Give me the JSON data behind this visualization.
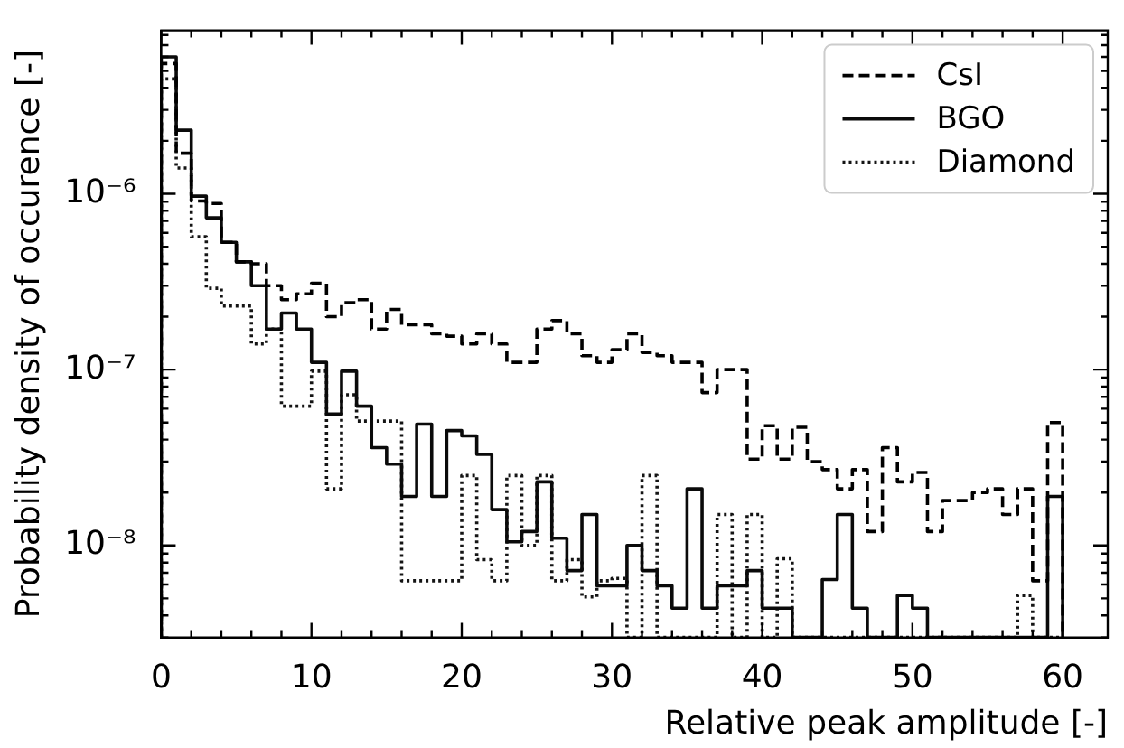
{
  "chart_data": {
    "type": "histogram",
    "xlabel": "Relative peak amplitude [-]",
    "ylabel": "Probability density of occurence [-]",
    "bins": [
      0,
      1,
      2,
      3,
      4,
      5,
      6,
      7,
      8,
      9,
      10,
      11,
      12,
      13,
      14,
      15,
      16,
      17,
      18,
      19,
      20,
      21,
      22,
      23,
      24,
      25,
      26,
      27,
      28,
      29,
      30,
      31,
      32,
      33,
      34,
      35,
      36,
      37,
      38,
      39,
      40,
      41,
      42,
      43,
      44,
      45,
      46,
      47,
      48,
      49,
      50,
      51,
      52,
      53,
      54,
      55,
      56,
      57,
      58,
      59,
      60
    ],
    "series": [
      {
        "name": "CsI",
        "color": "#000000",
        "line_style": "dashed",
        "values": [
          5.5e-06,
          1.7e-06,
          9.1e-07,
          8.8e-07,
          5.3e-07,
          4.1e-07,
          4e-07,
          3e-07,
          2.5e-07,
          2.7e-07,
          3.1e-07,
          2e-07,
          2.4e-07,
          2.5e-07,
          1.7e-07,
          2.2e-07,
          1.8e-07,
          1.8e-07,
          1.6e-07,
          1.55e-07,
          1.4e-07,
          1.6e-07,
          1.4e-07,
          1.1e-07,
          1.1e-07,
          1.7e-07,
          1.9e-07,
          1.6e-07,
          1.2e-07,
          1.1e-07,
          1.3e-07,
          1.6e-07,
          1.25e-07,
          1.2e-07,
          1.1e-07,
          1.1e-07,
          7.4e-08,
          1e-07,
          1e-07,
          3.1e-08,
          4.8e-08,
          3.1e-08,
          4.7e-08,
          3e-08,
          2.7e-08,
          2.1e-08,
          2.7e-08,
          1.2e-08,
          3.6e-08,
          2.3e-08,
          2.6e-08,
          1.2e-08,
          1.8e-08,
          1.8e-08,
          2e-08,
          2.1e-08,
          1.5e-08,
          2.1e-08,
          6.3e-09,
          5e-08
        ]
      },
      {
        "name": "BGO",
        "color": "#0a0a0a",
        "line_style": "solid",
        "values": [
          6e-06,
          2.3e-06,
          9.7e-07,
          7.3e-07,
          5.3e-07,
          4.1e-07,
          3e-07,
          1.7e-07,
          2.1e-07,
          1.7e-07,
          1.1e-07,
          5.6e-08,
          9.8e-08,
          6.2e-08,
          3.6e-08,
          2.9e-08,
          1.9e-08,
          4.9e-08,
          1.9e-08,
          4.5e-08,
          4.2e-08,
          3.3e-08,
          1.6e-08,
          1.05e-08,
          1.2e-08,
          2.3e-08,
          1.1e-08,
          7.2e-09,
          1.5e-08,
          5.9e-09,
          5.9e-09,
          1e-08,
          7.2e-09,
          5.9e-09,
          4.4e-09,
          2.1e-08,
          4.4e-09,
          5.9e-09,
          5.9e-09,
          7.2e-09,
          4.4e-09,
          4.4e-09,
          null,
          null,
          6.4e-09,
          1.5e-08,
          4.4e-09,
          null,
          null,
          5.2e-09,
          4.4e-09,
          null,
          null,
          null,
          null,
          null,
          null,
          null,
          null,
          1.9e-08
        ]
      },
      {
        "name": "Diamond",
        "color": "#141414",
        "line_style": "dotted",
        "values": [
          4.5e-06,
          1.4e-06,
          5.7e-07,
          2.9e-07,
          2.3e-07,
          2.3e-07,
          1.4e-07,
          1.7e-07,
          6.2e-08,
          6.2e-08,
          9.8e-08,
          2.1e-08,
          7.2e-08,
          5.1e-08,
          5.1e-08,
          5.1e-08,
          6.3e-09,
          6.3e-09,
          6.3e-09,
          6.3e-09,
          2.5e-08,
          8.3e-09,
          6.3e-09,
          2.5e-08,
          1e-08,
          2.5e-08,
          6.3e-09,
          8.3e-09,
          5.1e-09,
          6.3e-09,
          6.5e-09,
          null,
          2.5e-08,
          null,
          null,
          null,
          null,
          1.5e-08,
          null,
          1.5e-08,
          null,
          8.4e-09,
          null,
          null,
          null,
          null,
          null,
          null,
          null,
          null,
          null,
          null,
          null,
          null,
          null,
          null,
          null,
          5.2e-09,
          null,
          null
        ]
      }
    ],
    "xlim": [
      0,
      63
    ],
    "xticks": [
      0,
      10,
      20,
      30,
      40,
      50,
      60
    ],
    "ylim": [
      3e-09,
      8.5e-06
    ],
    "log": true,
    "yticks": [
      {
        "value": 3e-09,
        "label": null
      },
      {
        "value": 4e-09,
        "label": null
      },
      {
        "value": 5e-09,
        "label": null
      },
      {
        "value": 6e-09,
        "label": null
      },
      {
        "value": 7e-09,
        "label": null
      },
      {
        "value": 8e-09,
        "label": null
      },
      {
        "value": 9e-09,
        "label": null
      },
      {
        "value": 1e-08,
        "label": "10⁻⁸"
      },
      {
        "value": 2e-08,
        "label": null
      },
      {
        "value": 3e-08,
        "label": null
      },
      {
        "value": 4e-08,
        "label": null
      },
      {
        "value": 5e-08,
        "label": null
      },
      {
        "value": 6e-08,
        "label": null
      },
      {
        "value": 7e-08,
        "label": null
      },
      {
        "value": 8e-08,
        "label": null
      },
      {
        "value": 9e-08,
        "label": null
      },
      {
        "value": 1e-07,
        "label": "10⁻⁷"
      },
      {
        "value": 2e-07,
        "label": null
      },
      {
        "value": 3e-07,
        "label": null
      },
      {
        "value": 4e-07,
        "label": null
      },
      {
        "value": 5e-07,
        "label": null
      },
      {
        "value": 6e-07,
        "label": null
      },
      {
        "value": 7e-07,
        "label": null
      },
      {
        "value": 8e-07,
        "label": null
      },
      {
        "value": 9e-07,
        "label": null
      },
      {
        "value": 1e-06,
        "label": "10⁻⁶"
      },
      {
        "value": 2e-06,
        "label": null
      },
      {
        "value": 3e-06,
        "label": null
      },
      {
        "value": 4e-06,
        "label": null
      },
      {
        "value": 5e-06,
        "label": null
      },
      {
        "value": 6e-06,
        "label": null
      },
      {
        "value": 7e-06,
        "label": null
      },
      {
        "value": 8e-06,
        "label": null
      }
    ],
    "grid": false,
    "legend": "top right"
  }
}
